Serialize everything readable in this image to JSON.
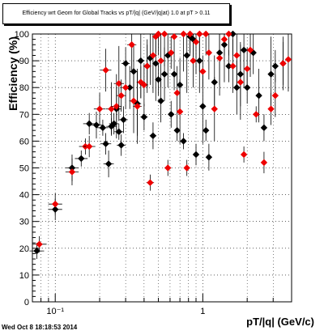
{
  "chart_data": {
    "type": "scatter",
    "title": "Efficiency wrt Geom for Global Tracks vs pT/|q| (GeV/|q|at) 1.0 at pT > 0.11",
    "xlabel": "pT/|q| (GeV/c)",
    "ylabel": "Efficiency (%)",
    "x_scale": "log",
    "xlim": [
      0.07,
      4.0
    ],
    "ylim": [
      0,
      100
    ],
    "x_tick_labels": [
      "10⁻¹",
      "1"
    ],
    "y_tick_labels": [
      "0",
      "10",
      "20",
      "30",
      "40",
      "50",
      "60",
      "70",
      "80",
      "90",
      "100"
    ],
    "grid": true,
    "footer": "Wed Oct  8 18:18:53 2014",
    "colors": {
      "series_black": "#000000",
      "series_red": "#ee0000"
    },
    "series": [
      {
        "color": "black",
        "x": [
          0.075,
          0.1,
          0.13,
          0.15,
          0.17,
          0.19,
          0.21,
          0.22,
          0.23,
          0.24,
          0.25,
          0.26,
          0.27,
          0.28,
          0.29,
          0.3,
          0.32,
          0.34,
          0.36,
          0.38,
          0.4,
          0.42,
          0.44,
          0.46,
          0.48,
          0.5,
          0.52,
          0.55,
          0.58,
          0.61,
          0.64,
          0.67,
          0.7,
          0.74,
          0.78,
          0.82,
          0.86,
          0.9,
          0.95,
          1.0,
          1.05,
          1.1,
          1.2,
          1.3,
          1.4,
          1.5,
          1.6,
          1.7,
          1.8,
          1.9,
          2.0,
          2.2,
          2.4,
          2.6,
          2.9,
          3.1,
          3.5
        ],
        "y": [
          19,
          34.5,
          50,
          53.5,
          66.5,
          66,
          65,
          59,
          51.5,
          65.5,
          66.5,
          72,
          63.5,
          58.5,
          68,
          89,
          80,
          86,
          74,
          90,
          69,
          88,
          91,
          62,
          89,
          83,
          75,
          85,
          92,
          70,
          85,
          64,
          81,
          60,
          92,
          99,
          98,
          55,
          90,
          73,
          64,
          54,
          82,
          93,
          96,
          88,
          100,
          80,
          85,
          94,
          80,
          93,
          77,
          65,
          85,
          88,
          89
        ]
      },
      {
        "color": "red",
        "x": [
          0.078,
          0.1,
          0.13,
          0.16,
          0.17,
          0.2,
          0.22,
          0.24,
          0.26,
          0.27,
          0.28,
          0.3,
          0.33,
          0.34,
          0.36,
          0.38,
          0.4,
          0.42,
          0.44,
          0.46,
          0.48,
          0.5,
          0.52,
          0.55,
          0.58,
          0.61,
          0.64,
          0.67,
          0.7,
          0.74,
          0.78,
          0.82,
          0.86,
          0.9,
          0.95,
          1.0,
          1.05,
          1.1,
          1.2,
          1.3,
          1.4,
          1.5,
          1.6,
          1.7,
          1.8,
          1.9,
          2.0,
          2.1,
          2.3,
          2.6,
          2.9,
          3.1,
          3.5,
          3.8
        ],
        "y": [
          21.5,
          36.5,
          48.5,
          58,
          58,
          72,
          86.5,
          72,
          73,
          81.5,
          77,
          80,
          96,
          75,
          73,
          82,
          81,
          88,
          44.5,
          92,
          99,
          100,
          90,
          100,
          50,
          93,
          99,
          78,
          71,
          100,
          50,
          100,
          90,
          97,
          100,
          86,
          100,
          93,
          72,
          91,
          98,
          100,
          88,
          92,
          82,
          55,
          87,
          94,
          70,
          52,
          72,
          77,
          89,
          90.5
        ]
      }
    ]
  }
}
